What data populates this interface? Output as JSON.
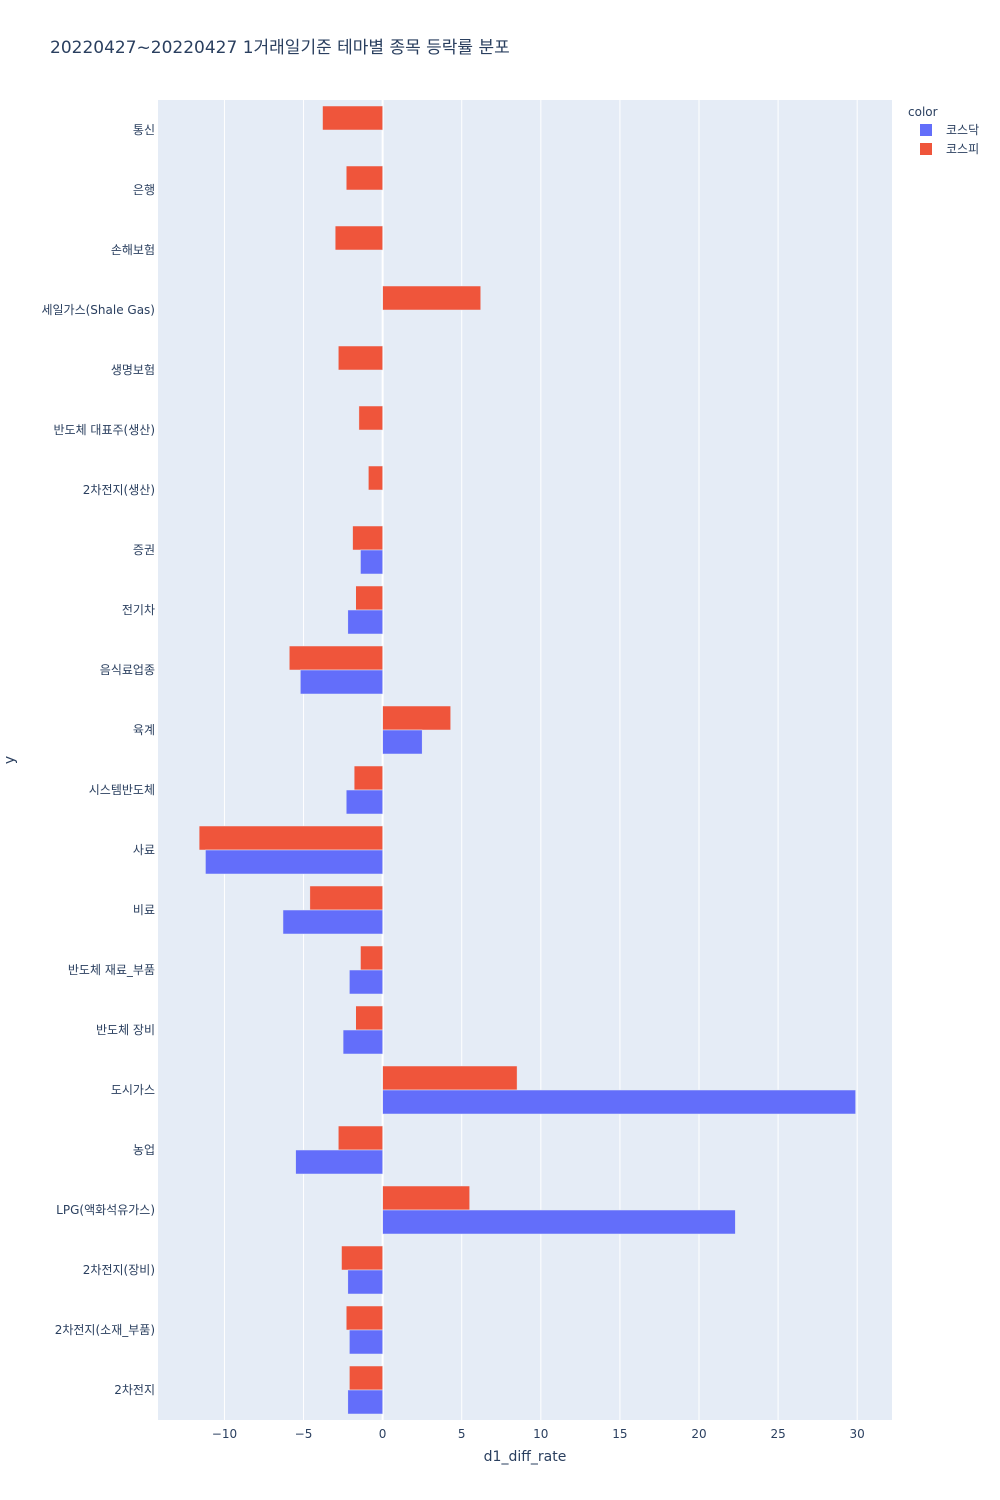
{
  "chart_data": {
    "type": "bar",
    "orientation": "horizontal",
    "barmode": "group",
    "title": "20220427~20220427 1거래일기준 테마별 종목 등락률 분포",
    "xlabel": "d1_diff_rate",
    "ylabel": "y",
    "xlim": [
      -14.2,
      32.2
    ],
    "x_ticks": [
      -10,
      -5,
      0,
      5,
      10,
      15,
      20,
      25,
      30
    ],
    "x_tick_labels": [
      "−10",
      "−5",
      "0",
      "5",
      "10",
      "15",
      "20",
      "25",
      "30"
    ],
    "grid": true,
    "legend": {
      "title": "color",
      "position": "top-right"
    },
    "categories": [
      "통신",
      "은행",
      "손해보험",
      "세일가스(Shale Gas)",
      "생명보험",
      "반도체 대표주(생산)",
      "2차전지(생산)",
      "증권",
      "전기차",
      "음식료업종",
      "육계",
      "시스템반도체",
      "사료",
      "비료",
      "반도체 재료_부품",
      "반도체 장비",
      "도시가스",
      "농업",
      "LPG(액화석유가스)",
      "2차전지(장비)",
      "2차전지(소재_부품)",
      "2차전지"
    ],
    "series": [
      {
        "name": "코스닥",
        "color": "#636efa",
        "values": [
          null,
          null,
          null,
          null,
          null,
          null,
          null,
          -1.4,
          -2.2,
          -5.2,
          2.5,
          -2.3,
          -11.2,
          -6.3,
          -2.1,
          -2.5,
          29.9,
          -5.5,
          22.3,
          -2.2,
          -2.1,
          -2.2
        ]
      },
      {
        "name": "코스피",
        "color": "#ef553b",
        "values": [
          -3.8,
          -2.3,
          -3.0,
          6.2,
          -2.8,
          -1.5,
          -0.9,
          -1.9,
          -1.7,
          -5.9,
          4.3,
          -1.8,
          -11.6,
          -4.6,
          -1.4,
          -1.7,
          8.5,
          -2.8,
          5.5,
          -2.6,
          -2.3,
          -2.1
        ]
      }
    ]
  }
}
